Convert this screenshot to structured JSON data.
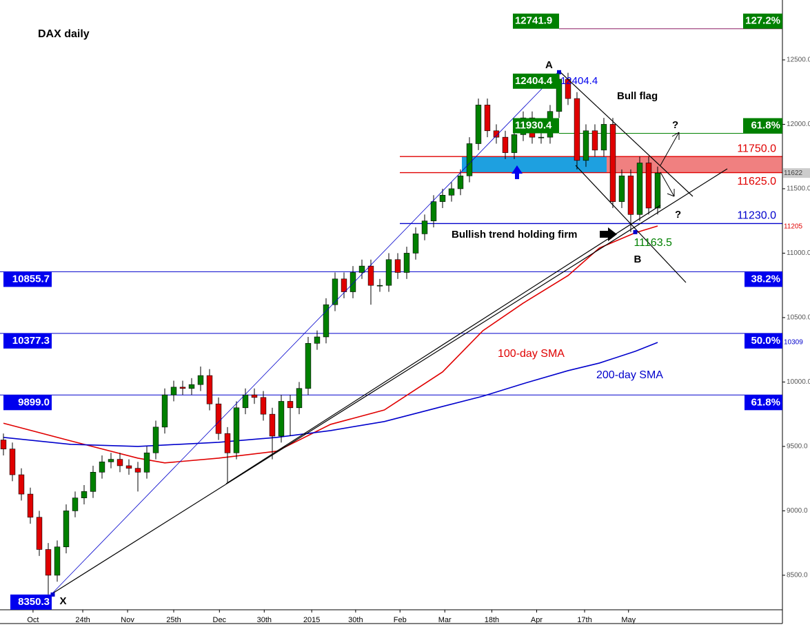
{
  "chart_data": {
    "type": "candlestick",
    "title": "DAX daily",
    "x": [
      0,
      2,
      4,
      6,
      8,
      10,
      12,
      14,
      16,
      18,
      20,
      22,
      24,
      26,
      28,
      30,
      32,
      34,
      36,
      38,
      40,
      42,
      44,
      46,
      48,
      50,
      52,
      54,
      56,
      58,
      60,
      62,
      64,
      66,
      68,
      70,
      72,
      74,
      76,
      78,
      80,
      82,
      84,
      86,
      88,
      90,
      92,
      94,
      96,
      98,
      100,
      102,
      104,
      106,
      108,
      110,
      112,
      114,
      116,
      118,
      120,
      122,
      124,
      126,
      128,
      130,
      132,
      134,
      136,
      138,
      140,
      142,
      144,
      146
    ],
    "open": [
      9550,
      9480,
      9280,
      9130,
      8950,
      8700,
      8500,
      8720,
      9000,
      9100,
      9150,
      9300,
      9380,
      9400,
      9350,
      9330,
      9300,
      9450,
      9650,
      9900,
      9960,
      9950,
      9980,
      10050,
      9830,
      9600,
      9450,
      9800,
      9900,
      9880,
      9750,
      9580,
      9850,
      9800,
      9950,
      10300,
      10350,
      10600,
      10800,
      10700,
      10850,
      10900,
      10750,
      10750,
      10950,
      10850,
      11000,
      11150,
      11250,
      11400,
      11450,
      11500,
      11600,
      11850,
      12150,
      11950,
      11900,
      11780,
      11920,
      12050,
      11900,
      11900,
      12100,
      12350,
      12200,
      11720,
      11950,
      11800,
      12000,
      11400,
      11600,
      11300,
      11700,
      11350
    ],
    "high": [
      9600,
      9530,
      9330,
      9180,
      9000,
      8750,
      8770,
      9050,
      9150,
      9200,
      9350,
      9430,
      9450,
      9450,
      9400,
      9380,
      9500,
      9700,
      9950,
      10010,
      10010,
      10030,
      10120,
      10100,
      9880,
      9650,
      9850,
      9950,
      9950,
      9930,
      9800,
      9900,
      9900,
      10000,
      10350,
      10400,
      10650,
      10850,
      10850,
      10900,
      10950,
      10950,
      10800,
      11000,
      11000,
      11050,
      11200,
      11300,
      11450,
      11500,
      11550,
      11650,
      11900,
      12200,
      12200,
      12000,
      11950,
      11970,
      12100,
      12100,
      11950,
      12150,
      12404.4,
      12400,
      12250,
      12000,
      12000,
      12050,
      12050,
      11650,
      11650,
      11750,
      11750,
      11672
    ],
    "low": [
      9430,
      9230,
      9080,
      8900,
      8650,
      8350.3,
      8450,
      8670,
      8950,
      9050,
      9100,
      9250,
      9330,
      9300,
      9280,
      9150,
      9250,
      9400,
      9600,
      9850,
      9900,
      9900,
      9930,
      9780,
      9550,
      9220,
      9400,
      9750,
      9830,
      9700,
      9400,
      9530,
      9580,
      9750,
      9900,
      10250,
      10300,
      10550,
      10650,
      10650,
      10800,
      10600,
      10700,
      10700,
      10800,
      10800,
      10950,
      11100,
      11200,
      11350,
      11400,
      11450,
      11550,
      11800,
      11900,
      11850,
      11730,
      11730,
      11870,
      11850,
      11850,
      11850,
      12050,
      12150,
      11650,
      11670,
      11750,
      11750,
      11350,
      11350,
      11163.5,
      11250,
      11300,
      11300
    ],
    "close": [
      9480,
      9280,
      9130,
      8950,
      8700,
      8500,
      8720,
      9000,
      9100,
      9150,
      9300,
      9380,
      9400,
      9350,
      9330,
      9300,
      9450,
      9650,
      9900,
      9960,
      9950,
      9980,
      10050,
      9830,
      9600,
      9450,
      9800,
      9900,
      9880,
      9750,
      9580,
      9850,
      9800,
      9950,
      10300,
      10350,
      10600,
      10800,
      10700,
      10850,
      10900,
      10750,
      10750,
      10950,
      10850,
      11000,
      11150,
      11250,
      11400,
      11450,
      11500,
      11600,
      11850,
      12150,
      11950,
      11900,
      11780,
      11920,
      12050,
      11900,
      11900,
      12100,
      12350,
      12200,
      11720,
      11950,
      11800,
      12000,
      11400,
      11600,
      11300,
      11700,
      11350,
      11622
    ],
    "up_color": "#008000",
    "down_color": "#e00000",
    "xlim": [
      -0.77,
      173.85
    ],
    "xticks": [
      {
        "value": 6.6,
        "label": "Oct"
      },
      {
        "value": 17.7,
        "label": "24th"
      },
      {
        "value": 27.7,
        "label": "Nov"
      },
      {
        "value": 38,
        "label": "25th"
      },
      {
        "value": 48.2,
        "label": "Dec"
      },
      {
        "value": 58.2,
        "label": "30th"
      },
      {
        "value": 68.8,
        "label": "2015"
      },
      {
        "value": 78.6,
        "label": "30th"
      },
      {
        "value": 88.5,
        "label": "Feb"
      },
      {
        "value": 98.5,
        "label": "Mar"
      },
      {
        "value": 109,
        "label": "18th"
      },
      {
        "value": 119,
        "label": "Apr"
      },
      {
        "value": 129.7,
        "label": "17th"
      },
      {
        "value": 139.5,
        "label": "May"
      }
    ],
    "ylim": [
      8232,
      12965
    ],
    "yticks": [
      {
        "value": 8500,
        "label": "8500.0"
      },
      {
        "value": 9000,
        "label": "9000.0"
      },
      {
        "value": 9500,
        "label": "9500.0"
      },
      {
        "value": 10000,
        "label": "10000.0"
      },
      {
        "value": 10500,
        "label": "10500.0"
      },
      {
        "value": 11000,
        "label": "11000.0"
      },
      {
        "value": 11500,
        "label": "11500.0"
      },
      {
        "value": 12000,
        "label": "12000.0"
      },
      {
        "value": 12500,
        "label": "12500.0"
      }
    ],
    "series": [
      {
        "name": "100-day SMA",
        "color": "#e00000",
        "x": [
          0,
          15,
          30,
          36,
          48,
          61,
          73,
          85,
          98,
          107,
          116,
          126,
          133,
          141,
          146
        ],
        "values": [
          9680,
          9543,
          9409,
          9372,
          9409,
          9463,
          9671,
          9783,
          10078,
          10398,
          10612,
          10826,
          11040,
          11158,
          11211
        ]
      },
      {
        "name": "200-day SMA",
        "color": "#0000cc",
        "x": [
          0,
          15,
          30,
          48,
          61,
          73,
          85,
          98,
          107,
          116,
          126,
          133,
          141,
          146
        ],
        "values": [
          9570,
          9516,
          9500,
          9532,
          9570,
          9623,
          9693,
          9810,
          9890,
          9987,
          10088,
          10147,
          10238,
          10307
        ]
      }
    ],
    "extension_levels": [
      {
        "value": 12741.9,
        "value_label": "12741.9",
        "ratio": "127.2%",
        "color": "#8b1c62"
      },
      {
        "value": 11930.4,
        "value_label": "11930.4",
        "ratio": "61.8%",
        "color": "#008000"
      }
    ],
    "retracement_levels": [
      {
        "value": 10855.7,
        "value_label": "10855.7",
        "ratio": "38.2%",
        "color": "#0000cc"
      },
      {
        "value": 10377.3,
        "value_label": "10377.3",
        "ratio": "50.0%",
        "color": "#0000cc"
      },
      {
        "value": 9899.0,
        "value_label": "9899.0",
        "ratio": "61.8%",
        "color": "#0000cc"
      }
    ],
    "levels": [
      {
        "value": 11750.0,
        "value_label": "11750.0",
        "color": "#e00000"
      },
      {
        "value": 11625.0,
        "value_label": "11625.0",
        "color": "#e00000"
      },
      {
        "value": 11230.0,
        "value_label": "11230.0",
        "color": "#0000cc"
      }
    ],
    "points": [
      {
        "name": "X",
        "x": 11,
        "value": 8350.3,
        "value_label": "8350.3"
      },
      {
        "name": "A",
        "x": 124,
        "value": 12404.4,
        "value_label": "12404.4"
      },
      {
        "name": "B",
        "x": 141,
        "value": 11163.5,
        "value_label": "11163.5"
      }
    ],
    "price_tags": [
      {
        "value": 11622,
        "color": "#444444"
      },
      {
        "value": 11205,
        "color": "#e00000"
      },
      {
        "value": 10309,
        "color": "#0000cc"
      }
    ],
    "annotations": [
      "Bull flag",
      "Bullish trend holding firm",
      "?",
      "?"
    ]
  }
}
